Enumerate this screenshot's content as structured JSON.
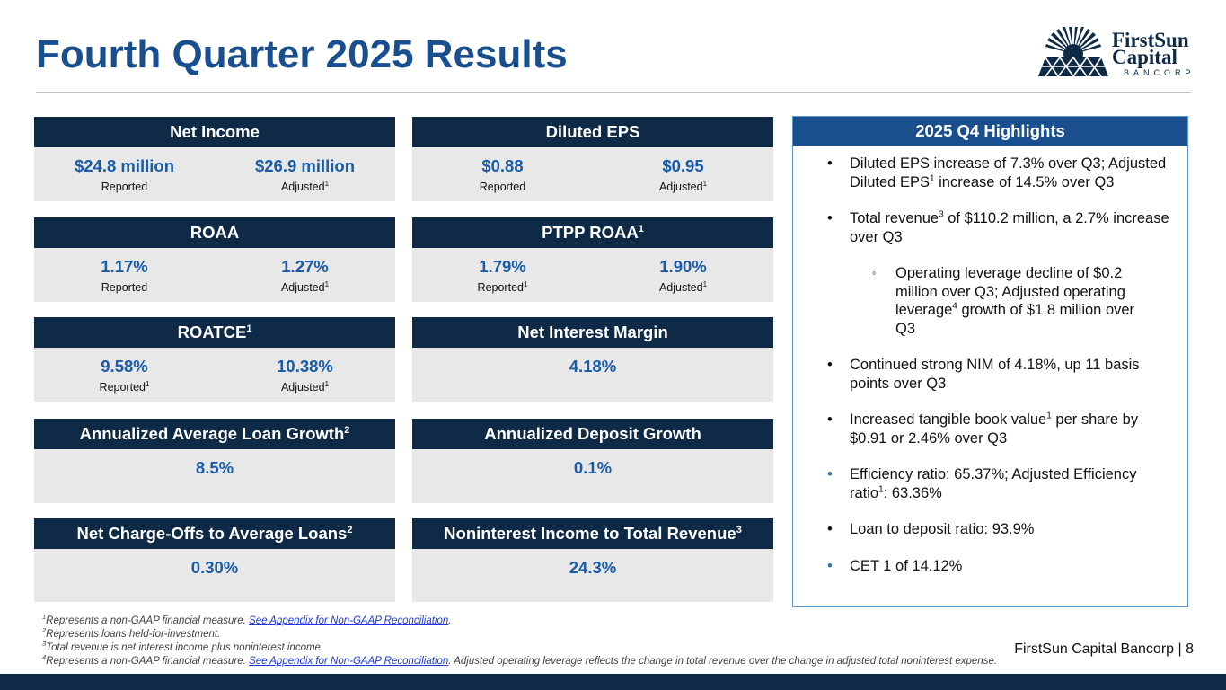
{
  "title": "Fourth Quarter 2025 Results",
  "logo": {
    "line1": "FirstSun",
    "line2": "Capital",
    "line3": "BANCORP"
  },
  "colors": {
    "navy": "#0e2a47",
    "blue_text": "#1a5ca7",
    "title_blue": "#1a4f8f",
    "bullet_blue": "#2e75b6",
    "box_border": "#5b9bd5"
  },
  "cards": {
    "net_income": {
      "title": "Net Income",
      "v1": "$24.8 million",
      "l1": "Reported",
      "v2": "$26.9 million",
      "l2": "Adjusted",
      "s2": "1"
    },
    "eps": {
      "title": "Diluted EPS",
      "v1": "$0.88",
      "l1": "Reported",
      "v2": "$0.95",
      "l2": "Adjusted",
      "s2": "1"
    },
    "roaa": {
      "title": "ROAA",
      "v1": "1.17%",
      "l1": "Reported",
      "v2": "1.27%",
      "l2": "Adjusted",
      "s2": "1"
    },
    "pptp": {
      "title": "PTPP ROAA",
      "sup": "1",
      "v1": "1.79%",
      "l1": "Reported",
      "s1": "1",
      "v2": "1.90%",
      "l2": "Adjusted",
      "s2": "1"
    },
    "roatce": {
      "title": "ROATCE",
      "sup": "1",
      "v1": "9.58%",
      "l1": "Reported",
      "s1": "1",
      "v2": "10.38%",
      "l2": "Adjusted",
      "s2": "1"
    },
    "nim": {
      "title": "Net Interest Margin",
      "value": "4.18%"
    },
    "loan_growth": {
      "title": "Annualized Average Loan Growth",
      "sup": "2",
      "value": "8.5%"
    },
    "deposit_growth": {
      "title": "Annualized Deposit Growth",
      "value": "0.1%"
    },
    "charge_offs": {
      "title": "Net Charge-Offs to Average Loans",
      "sup": "2",
      "value": "0.30%"
    },
    "nonint": {
      "title": "Noninterest Income to Total Revenue",
      "sup": "3",
      "value": "24.3%"
    }
  },
  "highlights": {
    "title": "2025 Q4 Highlights",
    "bullet": "•",
    "sub_bullet": "◦",
    "b1_a": "Diluted EPS increase of 7.3% over Q3; Adjusted Diluted EPS",
    "b1_sup": "1",
    "b1_b": " increase of 14.5% over Q3",
    "b2_a": "Total revenue",
    "b2_sup": "3",
    "b2_b": " of $110.2 million, a 2.7% increase over Q3",
    "b3_a": "Operating leverage decline of $0.2 million over Q3; Adjusted operating leverage",
    "b3_sup": "4",
    "b3_b": " growth of $1.8 million over Q3",
    "b4": "Continued strong NIM of 4.18%, up 11 basis points over Q3",
    "b5_a": "Increased tangible book value",
    "b5_sup": "1",
    "b5_b": " per share by $0.91 or 2.46% over Q3",
    "b6_a": "Efficiency ratio: 65.37%; Adjusted Efficiency ratio",
    "b6_sup": "1",
    "b6_b": ": 63.36%",
    "b7": "Loan to deposit ratio: 93.9%",
    "b8": "CET 1 of 14.12%"
  },
  "footnotes": {
    "n1_sup": "1",
    "n1_text": "Represents a non-GAAP financial measure. ",
    "n1_link": "See Appendix for Non-GAAP Reconciliation",
    "n1_end": ".",
    "n2_sup": "2",
    "n2_text": "Represents loans held-for-investment.",
    "n3_sup": "3",
    "n3_text": "Total revenue is net interest income plus noninterest income.",
    "n4_sup": "4",
    "n4_text": "Represents a non-GAAP financial measure. ",
    "n4_link": "See Appendix for Non-GAAP Reconciliation",
    "n4_end": ". Adjusted operating leverage reflects the change in total revenue over the change in adjusted total noninterest expense."
  },
  "footer": {
    "company_page": "FirstSun Capital Bancorp  |  8"
  }
}
